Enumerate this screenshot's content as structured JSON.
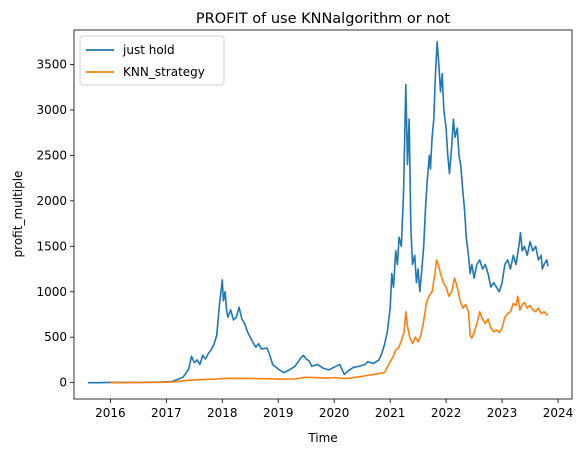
{
  "chart_data": {
    "type": "line",
    "title": "PROFIT of use KNNalgorithm or not",
    "xlabel": "Time",
    "ylabel": "profit_multiple",
    "xlim": [
      2015.35,
      2024.25
    ],
    "ylim": [
      -180,
      3880
    ],
    "xticks": [
      2016,
      2017,
      2018,
      2019,
      2020,
      2021,
      2022,
      2023,
      2024
    ],
    "xtick_labels": [
      "2016",
      "2017",
      "2018",
      "2019",
      "2020",
      "2021",
      "2022",
      "2023",
      "2024"
    ],
    "yticks": [
      0,
      500,
      1000,
      1500,
      2000,
      2500,
      3000,
      3500
    ],
    "yticks_labels": [
      "0",
      "500",
      "1000",
      "1500",
      "2000",
      "2500",
      "3000",
      "3500"
    ],
    "legend_position": "top-left",
    "grid": false,
    "series": [
      {
        "name": "just hold",
        "color": "#1f77b4",
        "points": [
          [
            2015.6,
            0
          ],
          [
            2015.8,
            0
          ],
          [
            2016.0,
            2
          ],
          [
            2016.3,
            3
          ],
          [
            2016.6,
            4
          ],
          [
            2016.9,
            6
          ],
          [
            2017.1,
            12
          ],
          [
            2017.3,
            60
          ],
          [
            2017.4,
            150
          ],
          [
            2017.45,
            290
          ],
          [
            2017.5,
            220
          ],
          [
            2017.55,
            250
          ],
          [
            2017.6,
            200
          ],
          [
            2017.65,
            300
          ],
          [
            2017.7,
            260
          ],
          [
            2017.75,
            320
          ],
          [
            2017.8,
            360
          ],
          [
            2017.85,
            420
          ],
          [
            2017.9,
            520
          ],
          [
            2017.95,
            860
          ],
          [
            2018.0,
            1130
          ],
          [
            2018.02,
            900
          ],
          [
            2018.05,
            1000
          ],
          [
            2018.08,
            780
          ],
          [
            2018.1,
            720
          ],
          [
            2018.15,
            800
          ],
          [
            2018.2,
            690
          ],
          [
            2018.25,
            720
          ],
          [
            2018.3,
            830
          ],
          [
            2018.35,
            700
          ],
          [
            2018.4,
            650
          ],
          [
            2018.45,
            560
          ],
          [
            2018.5,
            500
          ],
          [
            2018.55,
            440
          ],
          [
            2018.6,
            390
          ],
          [
            2018.65,
            430
          ],
          [
            2018.7,
            370
          ],
          [
            2018.8,
            380
          ],
          [
            2018.85,
            300
          ],
          [
            2018.9,
            200
          ],
          [
            2019.0,
            150
          ],
          [
            2019.1,
            110
          ],
          [
            2019.2,
            140
          ],
          [
            2019.3,
            180
          ],
          [
            2019.4,
            270
          ],
          [
            2019.45,
            300
          ],
          [
            2019.5,
            260
          ],
          [
            2019.55,
            240
          ],
          [
            2019.6,
            180
          ],
          [
            2019.7,
            200
          ],
          [
            2019.8,
            160
          ],
          [
            2019.9,
            140
          ],
          [
            2020.0,
            170
          ],
          [
            2020.1,
            200
          ],
          [
            2020.18,
            90
          ],
          [
            2020.25,
            130
          ],
          [
            2020.35,
            170
          ],
          [
            2020.45,
            180
          ],
          [
            2020.55,
            200
          ],
          [
            2020.6,
            230
          ],
          [
            2020.7,
            210
          ],
          [
            2020.8,
            250
          ],
          [
            2020.85,
            320
          ],
          [
            2020.9,
            420
          ],
          [
            2020.95,
            560
          ],
          [
            2021.0,
            820
          ],
          [
            2021.03,
            1200
          ],
          [
            2021.06,
            1050
          ],
          [
            2021.1,
            1450
          ],
          [
            2021.13,
            1300
          ],
          [
            2021.16,
            1600
          ],
          [
            2021.2,
            1500
          ],
          [
            2021.24,
            2100
          ],
          [
            2021.28,
            3280
          ],
          [
            2021.31,
            2400
          ],
          [
            2021.34,
            2900
          ],
          [
            2021.37,
            1700
          ],
          [
            2021.4,
            1300
          ],
          [
            2021.44,
            1400
          ],
          [
            2021.47,
            1100
          ],
          [
            2021.5,
            1250
          ],
          [
            2021.53,
            1000
          ],
          [
            2021.56,
            1200
          ],
          [
            2021.6,
            1500
          ],
          [
            2021.63,
            1900
          ],
          [
            2021.66,
            2200
          ],
          [
            2021.7,
            2500
          ],
          [
            2021.72,
            2350
          ],
          [
            2021.75,
            2700
          ],
          [
            2021.78,
            2900
          ],
          [
            2021.81,
            3400
          ],
          [
            2021.84,
            3750
          ],
          [
            2021.87,
            3500
          ],
          [
            2021.9,
            3200
          ],
          [
            2021.93,
            3400
          ],
          [
            2021.96,
            3000
          ],
          [
            2022.0,
            2800
          ],
          [
            2022.03,
            2500
          ],
          [
            2022.06,
            2300
          ],
          [
            2022.1,
            2600
          ],
          [
            2022.13,
            2900
          ],
          [
            2022.16,
            2700
          ],
          [
            2022.2,
            2800
          ],
          [
            2022.23,
            2500
          ],
          [
            2022.26,
            2400
          ],
          [
            2022.3,
            2100
          ],
          [
            2022.33,
            1900
          ],
          [
            2022.36,
            1600
          ],
          [
            2022.4,
            1400
          ],
          [
            2022.43,
            1200
          ],
          [
            2022.46,
            1300
          ],
          [
            2022.5,
            1150
          ],
          [
            2022.55,
            1300
          ],
          [
            2022.6,
            1350
          ],
          [
            2022.65,
            1250
          ],
          [
            2022.7,
            1300
          ],
          [
            2022.75,
            1200
          ],
          [
            2022.8,
            1050
          ],
          [
            2022.85,
            1100
          ],
          [
            2022.9,
            1050
          ],
          [
            2022.95,
            1000
          ],
          [
            2023.0,
            1100
          ],
          [
            2023.05,
            1300
          ],
          [
            2023.1,
            1350
          ],
          [
            2023.15,
            1250
          ],
          [
            2023.2,
            1400
          ],
          [
            2023.25,
            1300
          ],
          [
            2023.3,
            1500
          ],
          [
            2023.33,
            1650
          ],
          [
            2023.36,
            1450
          ],
          [
            2023.4,
            1500
          ],
          [
            2023.45,
            1400
          ],
          [
            2023.5,
            1550
          ],
          [
            2023.55,
            1450
          ],
          [
            2023.6,
            1500
          ],
          [
            2023.65,
            1350
          ],
          [
            2023.7,
            1400
          ],
          [
            2023.72,
            1250
          ],
          [
            2023.75,
            1300
          ],
          [
            2023.8,
            1350
          ],
          [
            2023.82,
            1280
          ]
        ]
      },
      {
        "name": "KNN_strategy",
        "color": "#ff7f0e",
        "points": [
          [
            2016.0,
            0
          ],
          [
            2016.3,
            1
          ],
          [
            2016.6,
            2
          ],
          [
            2016.9,
            3
          ],
          [
            2017.1,
            8
          ],
          [
            2017.3,
            20
          ],
          [
            2017.5,
            30
          ],
          [
            2017.7,
            35
          ],
          [
            2017.9,
            40
          ],
          [
            2018.0,
            45
          ],
          [
            2018.3,
            48
          ],
          [
            2018.6,
            45
          ],
          [
            2018.9,
            42
          ],
          [
            2019.0,
            38
          ],
          [
            2019.3,
            40
          ],
          [
            2019.5,
            60
          ],
          [
            2019.7,
            55
          ],
          [
            2019.9,
            50
          ],
          [
            2020.0,
            55
          ],
          [
            2020.2,
            45
          ],
          [
            2020.4,
            60
          ],
          [
            2020.6,
            80
          ],
          [
            2020.8,
            100
          ],
          [
            2020.9,
            110
          ],
          [
            2021.0,
            230
          ],
          [
            2021.05,
            280
          ],
          [
            2021.1,
            360
          ],
          [
            2021.15,
            380
          ],
          [
            2021.2,
            460
          ],
          [
            2021.25,
            560
          ],
          [
            2021.28,
            780
          ],
          [
            2021.31,
            620
          ],
          [
            2021.35,
            500
          ],
          [
            2021.4,
            430
          ],
          [
            2021.45,
            500
          ],
          [
            2021.5,
            450
          ],
          [
            2021.55,
            520
          ],
          [
            2021.6,
            680
          ],
          [
            2021.65,
            880
          ],
          [
            2021.7,
            960
          ],
          [
            2021.75,
            1000
          ],
          [
            2021.8,
            1200
          ],
          [
            2021.83,
            1350
          ],
          [
            2021.86,
            1300
          ],
          [
            2021.9,
            1200
          ],
          [
            2021.95,
            1100
          ],
          [
            2022.0,
            1050
          ],
          [
            2022.05,
            950
          ],
          [
            2022.1,
            1000
          ],
          [
            2022.15,
            1150
          ],
          [
            2022.2,
            1050
          ],
          [
            2022.25,
            900
          ],
          [
            2022.3,
            820
          ],
          [
            2022.35,
            860
          ],
          [
            2022.4,
            780
          ],
          [
            2022.43,
            520
          ],
          [
            2022.46,
            490
          ],
          [
            2022.5,
            550
          ],
          [
            2022.55,
            650
          ],
          [
            2022.6,
            780
          ],
          [
            2022.65,
            700
          ],
          [
            2022.7,
            650
          ],
          [
            2022.75,
            700
          ],
          [
            2022.8,
            600
          ],
          [
            2022.85,
            560
          ],
          [
            2022.9,
            580
          ],
          [
            2022.95,
            550
          ],
          [
            2023.0,
            600
          ],
          [
            2023.05,
            720
          ],
          [
            2023.1,
            760
          ],
          [
            2023.15,
            780
          ],
          [
            2023.2,
            870
          ],
          [
            2023.25,
            850
          ],
          [
            2023.28,
            950
          ],
          [
            2023.32,
            800
          ],
          [
            2023.36,
            860
          ],
          [
            2023.4,
            880
          ],
          [
            2023.45,
            820
          ],
          [
            2023.5,
            850
          ],
          [
            2023.55,
            800
          ],
          [
            2023.6,
            780
          ],
          [
            2023.65,
            820
          ],
          [
            2023.7,
            760
          ],
          [
            2023.75,
            780
          ],
          [
            2023.8,
            750
          ],
          [
            2023.82,
            740
          ]
        ]
      }
    ]
  }
}
